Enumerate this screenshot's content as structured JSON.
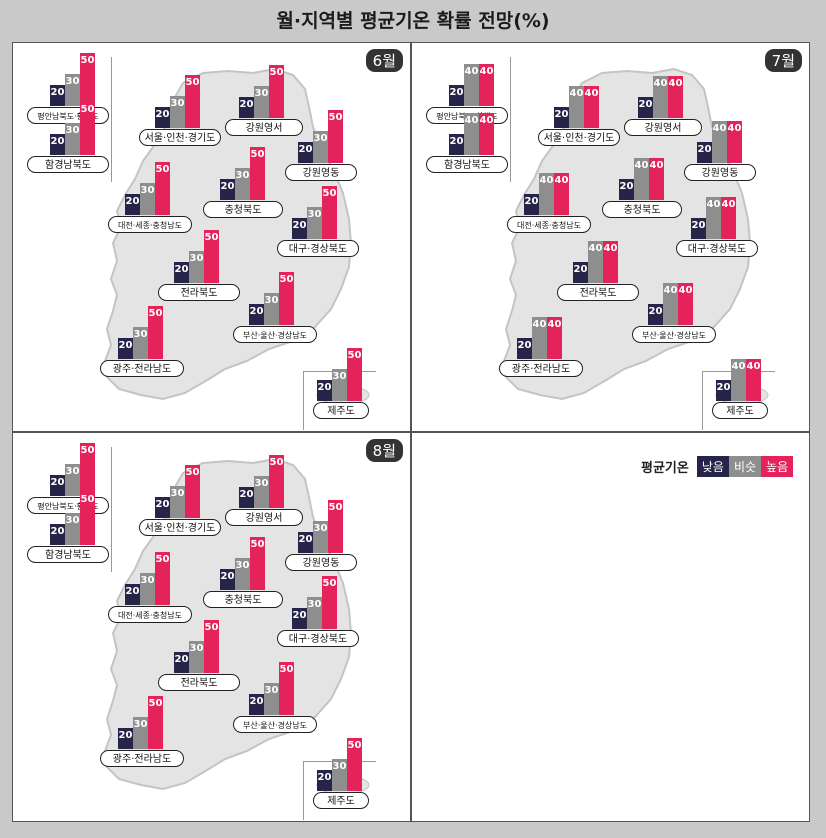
{
  "title": "월·지역별 평균기온 확률 전망(%)",
  "legend": {
    "title": "평균기온",
    "items": [
      {
        "label": "낮음",
        "color": "#262449"
      },
      {
        "label": "비슷",
        "color": "#8e8e8e"
      },
      {
        "label": "높음",
        "color": "#e5235b"
      }
    ]
  },
  "colors": {
    "map_fill": "#e4e4e4",
    "map_edge": "#c4c4c4"
  },
  "chart_data": [
    {
      "type": "bar",
      "month": "6월",
      "series_names": [
        "낮음",
        "비슷",
        "높음"
      ],
      "regions": [
        {
          "name": "평안남북도·황해도",
          "values": [
            20,
            30,
            50
          ]
        },
        {
          "name": "함경남북도",
          "values": [
            20,
            30,
            50
          ]
        },
        {
          "name": "서울·인천·경기도",
          "values": [
            20,
            30,
            50
          ]
        },
        {
          "name": "강원영서",
          "values": [
            20,
            30,
            50
          ]
        },
        {
          "name": "강원영동",
          "values": [
            20,
            30,
            50
          ]
        },
        {
          "name": "대전·세종·충청남도",
          "values": [
            20,
            30,
            50
          ]
        },
        {
          "name": "충청북도",
          "values": [
            20,
            30,
            50
          ]
        },
        {
          "name": "대구·경상북도",
          "values": [
            20,
            30,
            50
          ]
        },
        {
          "name": "전라북도",
          "values": [
            20,
            30,
            50
          ]
        },
        {
          "name": "부산·울산·경상남도",
          "values": [
            20,
            30,
            50
          ]
        },
        {
          "name": "광주·전라남도",
          "values": [
            20,
            30,
            50
          ]
        },
        {
          "name": "제주도",
          "values": [
            20,
            30,
            50
          ]
        }
      ]
    },
    {
      "type": "bar",
      "month": "7월",
      "series_names": [
        "낮음",
        "비슷",
        "높음"
      ],
      "regions": [
        {
          "name": "평안남북도·황해도",
          "values": [
            20,
            40,
            40
          ]
        },
        {
          "name": "함경남북도",
          "values": [
            20,
            40,
            40
          ]
        },
        {
          "name": "서울·인천·경기도",
          "values": [
            20,
            40,
            40
          ]
        },
        {
          "name": "강원영서",
          "values": [
            20,
            40,
            40
          ]
        },
        {
          "name": "강원영동",
          "values": [
            20,
            40,
            40
          ]
        },
        {
          "name": "대전·세종·충청남도",
          "values": [
            20,
            40,
            40
          ]
        },
        {
          "name": "충청북도",
          "values": [
            20,
            40,
            40
          ]
        },
        {
          "name": "대구·경상북도",
          "values": [
            20,
            40,
            40
          ]
        },
        {
          "name": "전라북도",
          "values": [
            20,
            40,
            40
          ]
        },
        {
          "name": "부산·울산·경상남도",
          "values": [
            20,
            40,
            40
          ]
        },
        {
          "name": "광주·전라남도",
          "values": [
            20,
            40,
            40
          ]
        },
        {
          "name": "제주도",
          "values": [
            20,
            40,
            40
          ]
        }
      ]
    },
    {
      "type": "bar",
      "month": "8월",
      "series_names": [
        "낮음",
        "비슷",
        "높음"
      ],
      "regions": [
        {
          "name": "평안남북도·황해도",
          "values": [
            20,
            30,
            50
          ]
        },
        {
          "name": "함경남북도",
          "values": [
            20,
            30,
            50
          ]
        },
        {
          "name": "서울·인천·경기도",
          "values": [
            20,
            30,
            50
          ]
        },
        {
          "name": "강원영서",
          "values": [
            20,
            30,
            50
          ]
        },
        {
          "name": "강원영동",
          "values": [
            20,
            30,
            50
          ]
        },
        {
          "name": "대전·세종·충청남도",
          "values": [
            20,
            30,
            50
          ]
        },
        {
          "name": "충청북도",
          "values": [
            20,
            30,
            50
          ]
        },
        {
          "name": "대구·경상북도",
          "values": [
            20,
            30,
            50
          ]
        },
        {
          "name": "전라북도",
          "values": [
            20,
            30,
            50
          ]
        },
        {
          "name": "부산·울산·경상남도",
          "values": [
            20,
            30,
            50
          ]
        },
        {
          "name": "광주·전라남도",
          "values": [
            20,
            30,
            50
          ]
        },
        {
          "name": "제주도",
          "values": [
            20,
            30,
            50
          ]
        }
      ]
    }
  ]
}
